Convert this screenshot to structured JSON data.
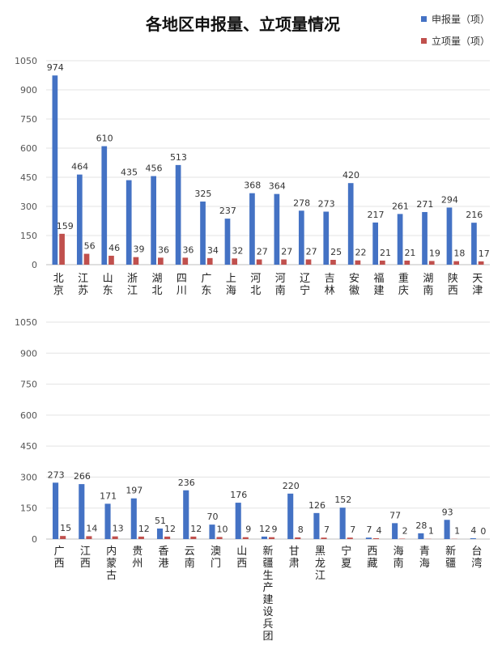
{
  "title": "各地区申报量、立项量情况",
  "legend": [
    {
      "label": "申报量（项）",
      "color": "#4472c4"
    },
    {
      "label": "立项量（项）",
      "color": "#c0504d"
    }
  ],
  "chart_data": [
    {
      "type": "bar",
      "title": "各地区申报量、立项量情况",
      "categories": [
        "北京",
        "江苏",
        "山东",
        "浙江",
        "湖北",
        "四川",
        "广东",
        "上海",
        "河北",
        "河南",
        "辽宁",
        "吉林",
        "安徽",
        "福建",
        "重庆",
        "湖南",
        "陕西",
        "天津"
      ],
      "series": [
        {
          "name": "申报量（项）",
          "values": [
            974,
            464,
            610,
            435,
            456,
            513,
            325,
            237,
            368,
            364,
            278,
            273,
            420,
            217,
            261,
            271,
            294,
            216
          ]
        },
        {
          "name": "立项量（项）",
          "values": [
            159,
            56,
            46,
            39,
            36,
            36,
            34,
            32,
            27,
            27,
            27,
            25,
            22,
            21,
            21,
            19,
            18,
            17
          ]
        }
      ],
      "ylim": [
        0,
        1050
      ],
      "yticks": [
        "0",
        "150",
        "300",
        "450",
        "600",
        "750",
        "900",
        "1050"
      ],
      "grid": true,
      "legend_position": "top-right"
    },
    {
      "type": "bar",
      "categories": [
        "广西",
        "江西",
        "内蒙古",
        "贵州",
        "香港",
        "云南",
        "澳门",
        "山西",
        "新疆生产建设兵团",
        "甘肃",
        "黑龙江",
        "宁夏",
        "西藏",
        "海南",
        "青海",
        "新疆",
        "台湾"
      ],
      "series": [
        {
          "name": "申报量（项）",
          "values": [
            273,
            266,
            171,
            197,
            51,
            236,
            70,
            176,
            12,
            220,
            126,
            152,
            7,
            77,
            28,
            93,
            4
          ]
        },
        {
          "name": "立项量（项）",
          "values": [
            15,
            14,
            13,
            12,
            12,
            12,
            10,
            9,
            9,
            8,
            7,
            7,
            4,
            2,
            1,
            1,
            0
          ]
        }
      ],
      "ylim": [
        0,
        1050
      ],
      "yticks": [
        "0",
        "150",
        "300",
        "450",
        "600",
        "750",
        "900",
        "1050"
      ],
      "grid": true
    }
  ]
}
